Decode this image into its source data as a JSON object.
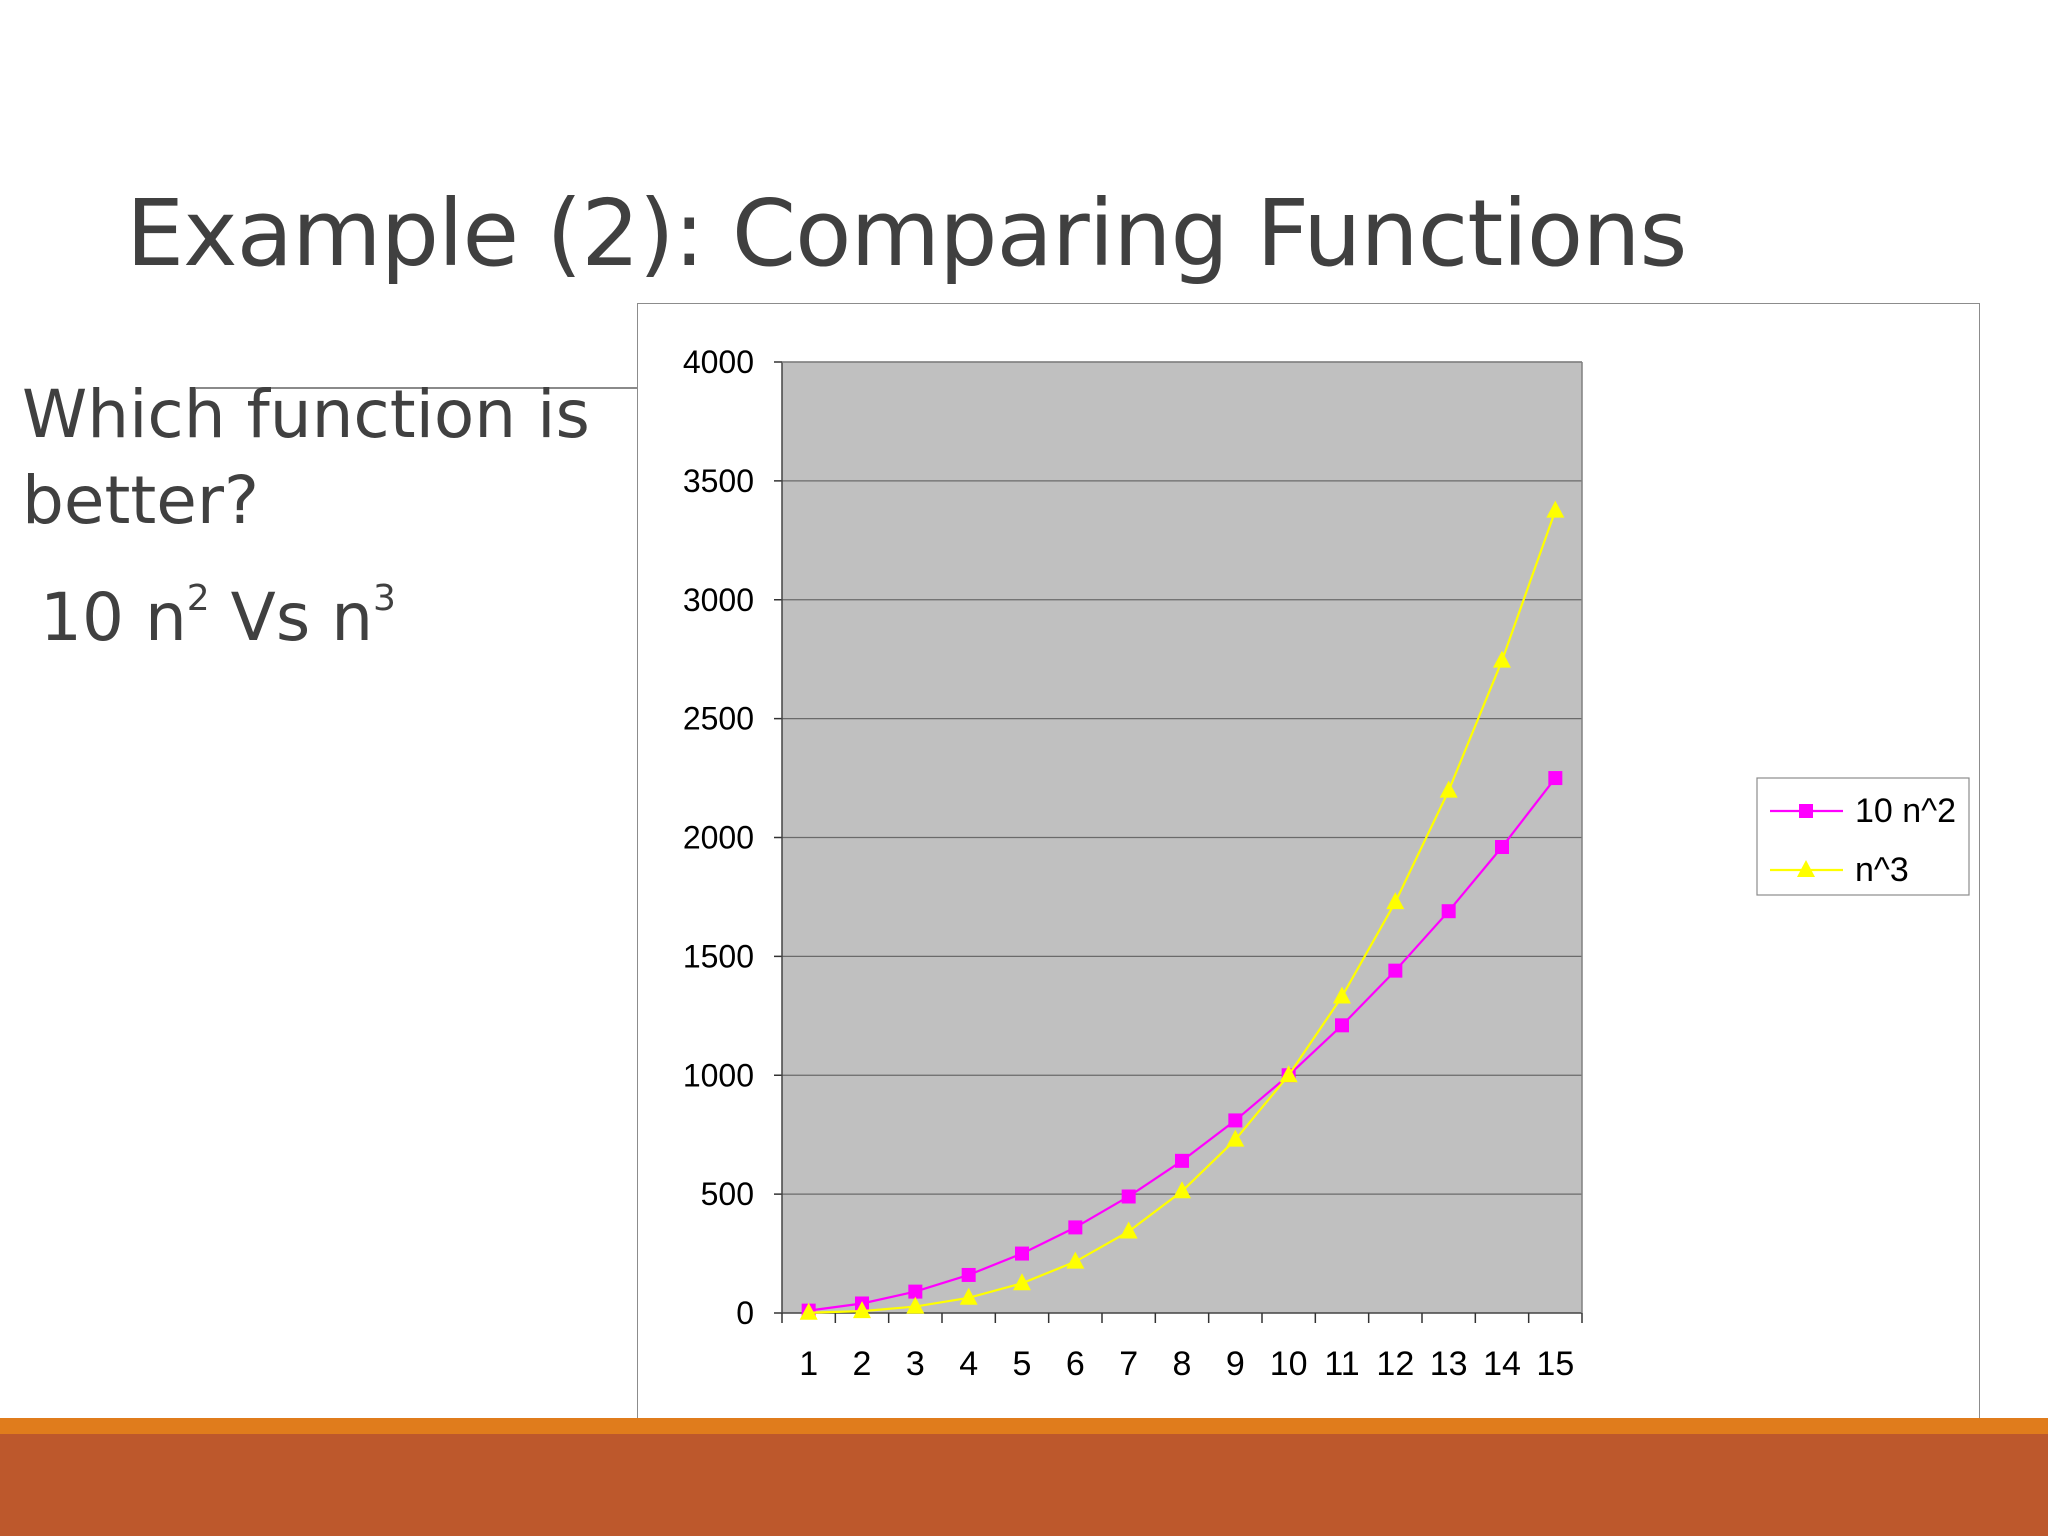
{
  "slide": {
    "title": "Example (2): Comparing Functions",
    "question": "Which function is better?",
    "compare": {
      "a_base": "10 n",
      "a_exp": "2",
      "vs": " Vs n",
      "b_exp": "3"
    }
  },
  "colors": {
    "plot_bg": "#c0c0c0",
    "series_1": "#ff00ff",
    "series_2": "#ffff00",
    "footer_light": "#e07c1c",
    "footer_dark": "#bd582c"
  },
  "chart_data": {
    "type": "line",
    "title": "",
    "xlabel": "",
    "ylabel": "",
    "categories": [
      "1",
      "2",
      "3",
      "4",
      "5",
      "6",
      "7",
      "8",
      "9",
      "10",
      "11",
      "12",
      "13",
      "14",
      "15"
    ],
    "ylim": [
      0,
      4000
    ],
    "yticks": [
      0,
      500,
      1000,
      1500,
      2000,
      2500,
      3000,
      3500,
      4000
    ],
    "grid": true,
    "legend": "right",
    "series": [
      {
        "name": "10 n^2",
        "marker": "square",
        "values": [
          10,
          40,
          90,
          160,
          250,
          360,
          490,
          640,
          810,
          1000,
          1210,
          1440,
          1690,
          1960,
          2250
        ]
      },
      {
        "name": "n^3",
        "marker": "triangle",
        "values": [
          1,
          8,
          27,
          64,
          125,
          216,
          343,
          512,
          729,
          1000,
          1331,
          1728,
          2197,
          2744,
          3375
        ]
      }
    ]
  }
}
